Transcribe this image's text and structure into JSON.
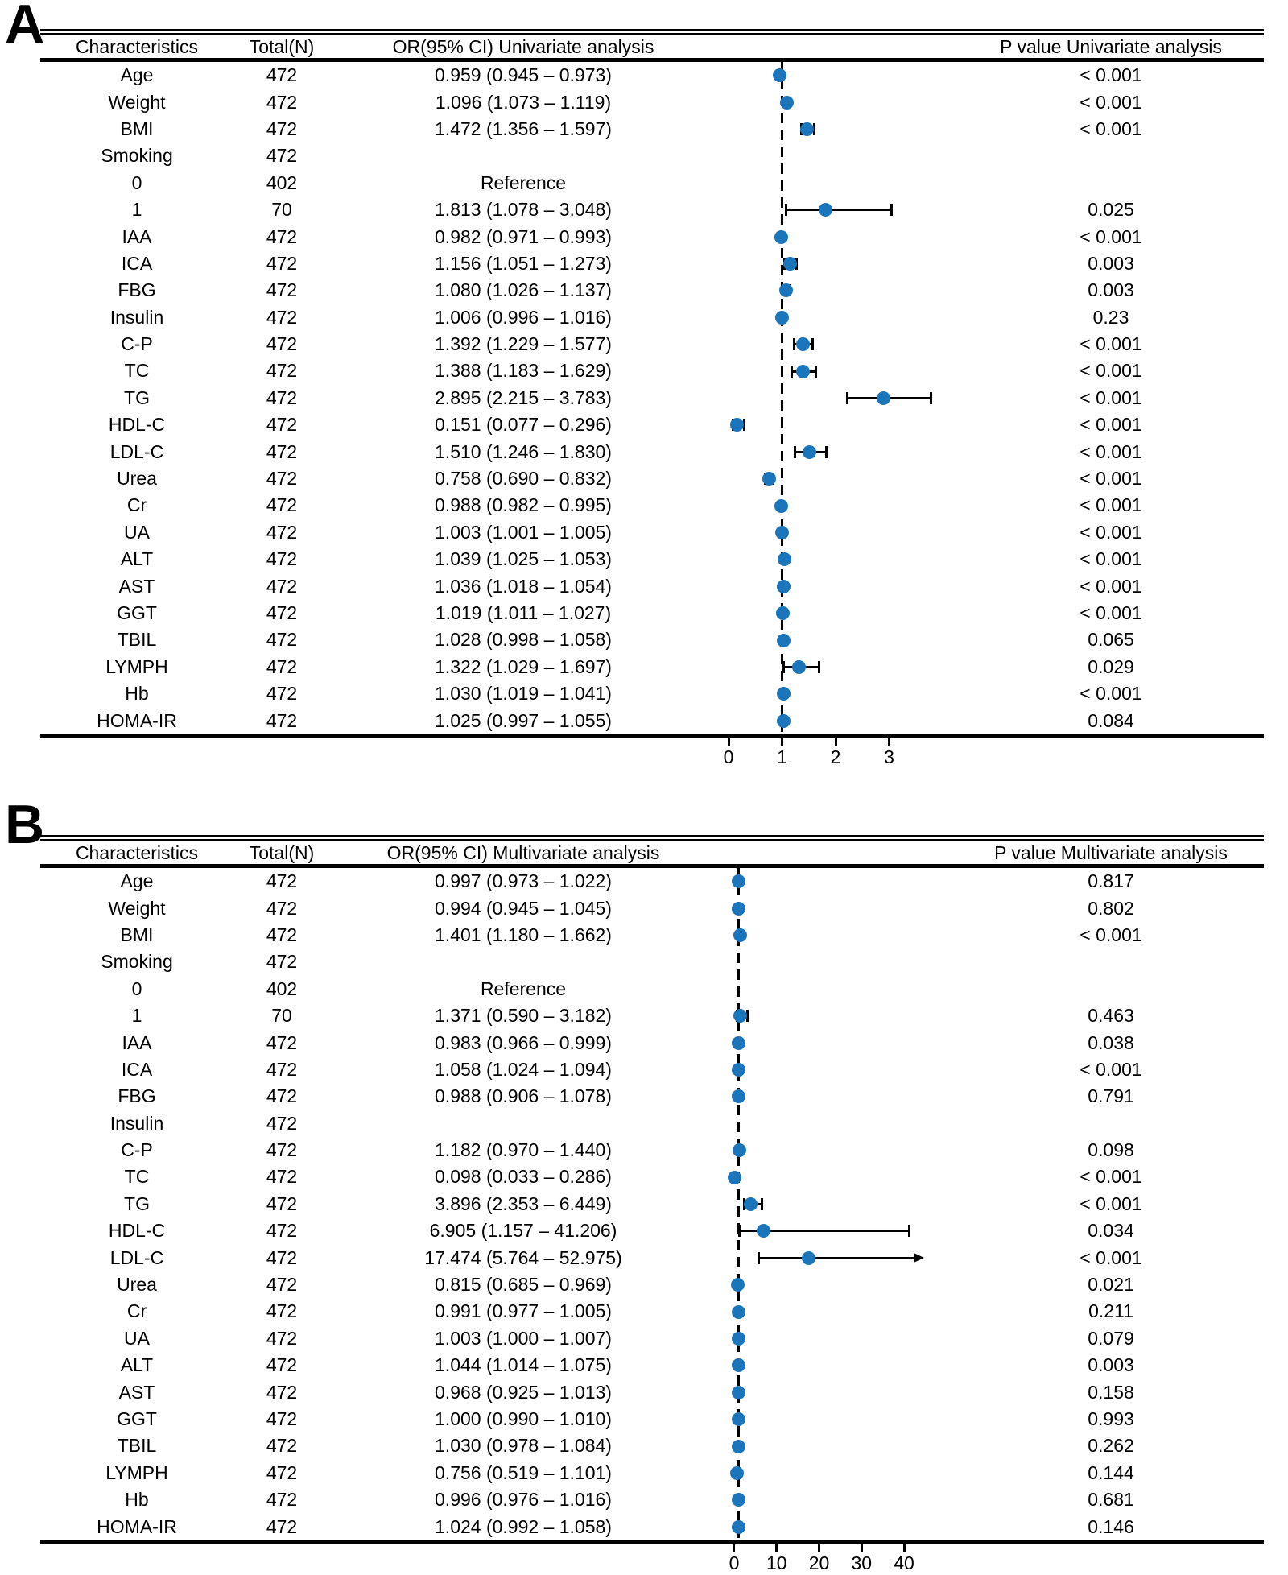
{
  "figure": {
    "background_color": "#ffffff",
    "marker_color": "#1b75bb",
    "line_color": "#000000"
  },
  "chart_data": [
    {
      "type": "forest",
      "panel_label": "A",
      "columns": [
        "Characteristics",
        "Total(N)",
        "OR(95% CI) Univariate analysis",
        "P value Univariate analysis"
      ],
      "axis": {
        "ticks": [
          0,
          1,
          2,
          3
        ],
        "tick_labels": [
          "0",
          "1",
          "2",
          "3"
        ],
        "xlim": [
          -0.226,
          4.286
        ],
        "dashed_line_at": 1
      },
      "rows": [
        {
          "characteristic": "Age",
          "total": "472",
          "or_ci": "0.959 (0.945 – 0.973)",
          "p": "< 0.001",
          "or": 0.959,
          "low": 0.945,
          "high": 0.973
        },
        {
          "characteristic": "Weight",
          "total": "472",
          "or_ci": "1.096 (1.073 – 1.119)",
          "p": "< 0.001",
          "or": 1.096,
          "low": 1.073,
          "high": 1.119
        },
        {
          "characteristic": "BMI",
          "total": "472",
          "or_ci": "1.472 (1.356 – 1.597)",
          "p": "< 0.001",
          "or": 1.472,
          "low": 1.356,
          "high": 1.597
        },
        {
          "characteristic": "Smoking",
          "total": "472",
          "or_ci": "",
          "p": ""
        },
        {
          "characteristic": "0",
          "total": "402",
          "or_ci": "Reference",
          "p": ""
        },
        {
          "characteristic": "1",
          "total": "70",
          "or_ci": "1.813 (1.078 – 3.048)",
          "p": "0.025",
          "or": 1.813,
          "low": 1.078,
          "high": 3.048
        },
        {
          "characteristic": "IAA",
          "total": "472",
          "or_ci": "0.982 (0.971 – 0.993)",
          "p": "< 0.001",
          "or": 0.982,
          "low": 0.971,
          "high": 0.993
        },
        {
          "characteristic": "ICA",
          "total": "472",
          "or_ci": "1.156 (1.051 – 1.273)",
          "p": "0.003",
          "or": 1.156,
          "low": 1.051,
          "high": 1.273
        },
        {
          "characteristic": "FBG",
          "total": "472",
          "or_ci": "1.080 (1.026 – 1.137)",
          "p": "0.003",
          "or": 1.08,
          "low": 1.026,
          "high": 1.137
        },
        {
          "characteristic": "Insulin",
          "total": "472",
          "or_ci": "1.006 (0.996 – 1.016)",
          "p": "0.23",
          "or": 1.006,
          "low": 0.996,
          "high": 1.016
        },
        {
          "characteristic": "C-P",
          "total": "472",
          "or_ci": "1.392 (1.229 – 1.577)",
          "p": "< 0.001",
          "or": 1.392,
          "low": 1.229,
          "high": 1.577
        },
        {
          "characteristic": "TC",
          "total": "472",
          "or_ci": "1.388 (1.183 – 1.629)",
          "p": "< 0.001",
          "or": 1.388,
          "low": 1.183,
          "high": 1.629
        },
        {
          "characteristic": "TG",
          "total": "472",
          "or_ci": "2.895 (2.215 – 3.783)",
          "p": "< 0.001",
          "or": 2.895,
          "low": 2.215,
          "high": 3.783
        },
        {
          "characteristic": "HDL-C",
          "total": "472",
          "or_ci": "0.151 (0.077 – 0.296)",
          "p": "< 0.001",
          "or": 0.151,
          "low": 0.077,
          "high": 0.296
        },
        {
          "characteristic": "LDL-C",
          "total": "472",
          "or_ci": "1.510 (1.246 – 1.830)",
          "p": "< 0.001",
          "or": 1.51,
          "low": 1.246,
          "high": 1.83
        },
        {
          "characteristic": "Urea",
          "total": "472",
          "or_ci": "0.758 (0.690 – 0.832)",
          "p": "< 0.001",
          "or": 0.758,
          "low": 0.69,
          "high": 0.832
        },
        {
          "characteristic": "Cr",
          "total": "472",
          "or_ci": "0.988 (0.982 – 0.995)",
          "p": "< 0.001",
          "or": 0.988,
          "low": 0.982,
          "high": 0.995
        },
        {
          "characteristic": "UA",
          "total": "472",
          "or_ci": "1.003 (1.001 – 1.005)",
          "p": "< 0.001",
          "or": 1.003,
          "low": 1.001,
          "high": 1.005
        },
        {
          "characteristic": "ALT",
          "total": "472",
          "or_ci": "1.039 (1.025 – 1.053)",
          "p": "< 0.001",
          "or": 1.039,
          "low": 1.025,
          "high": 1.053
        },
        {
          "characteristic": "AST",
          "total": "472",
          "or_ci": "1.036 (1.018 – 1.054)",
          "p": "< 0.001",
          "or": 1.036,
          "low": 1.018,
          "high": 1.054
        },
        {
          "characteristic": "GGT",
          "total": "472",
          "or_ci": "1.019 (1.011 – 1.027)",
          "p": "< 0.001",
          "or": 1.019,
          "low": 1.011,
          "high": 1.027
        },
        {
          "characteristic": "TBIL",
          "total": "472",
          "or_ci": "1.028 (0.998 – 1.058)",
          "p": "0.065",
          "or": 1.028,
          "low": 0.998,
          "high": 1.058
        },
        {
          "characteristic": "LYMPH",
          "total": "472",
          "or_ci": "1.322 (1.029 – 1.697)",
          "p": "0.029",
          "or": 1.322,
          "low": 1.029,
          "high": 1.697
        },
        {
          "characteristic": "Hb",
          "total": "472",
          "or_ci": "1.030 (1.019 – 1.041)",
          "p": "< 0.001",
          "or": 1.03,
          "low": 1.019,
          "high": 1.041
        },
        {
          "characteristic": "HOMA-IR",
          "total": "472",
          "or_ci": "1.025 (0.997 – 1.055)",
          "p": "0.084",
          "or": 1.025,
          "low": 0.997,
          "high": 1.055
        }
      ]
    },
    {
      "type": "forest",
      "panel_label": "B",
      "columns": [
        "Characteristics",
        "Total(N)",
        "OR(95% CI) Multivariate analysis",
        "P value Multivariate analysis"
      ],
      "axis": {
        "ticks": [
          0,
          10,
          20,
          30,
          40
        ],
        "tick_labels": [
          "0",
          "10",
          "20",
          "30",
          "40"
        ],
        "xlim": [
          -4.17,
          52.7
        ],
        "dashed_line_at": 1,
        "clip_max": 43.2
      },
      "rows": [
        {
          "characteristic": "Age",
          "total": "472",
          "or_ci": "0.997 (0.973 – 1.022)",
          "p": "0.817",
          "or": 0.997,
          "low": 0.973,
          "high": 1.022
        },
        {
          "characteristic": "Weight",
          "total": "472",
          "or_ci": "0.994 (0.945 – 1.045)",
          "p": "0.802",
          "or": 0.994,
          "low": 0.945,
          "high": 1.045
        },
        {
          "characteristic": "BMI",
          "total": "472",
          "or_ci": "1.401 (1.180 – 1.662)",
          "p": "< 0.001",
          "or": 1.401,
          "low": 1.18,
          "high": 1.662
        },
        {
          "characteristic": "Smoking",
          "total": "472",
          "or_ci": "",
          "p": ""
        },
        {
          "characteristic": "0",
          "total": "402",
          "or_ci": "Reference",
          "p": ""
        },
        {
          "characteristic": "1",
          "total": "70",
          "or_ci": "1.371 (0.590 – 3.182)",
          "p": "0.463",
          "or": 1.371,
          "low": 0.59,
          "high": 3.182
        },
        {
          "characteristic": "IAA",
          "total": "472",
          "or_ci": "0.983 (0.966 – 0.999)",
          "p": "0.038",
          "or": 0.983,
          "low": 0.966,
          "high": 0.999
        },
        {
          "characteristic": "ICA",
          "total": "472",
          "or_ci": "1.058 (1.024 – 1.094)",
          "p": "< 0.001",
          "or": 1.058,
          "low": 1.024,
          "high": 1.094
        },
        {
          "characteristic": "FBG",
          "total": "472",
          "or_ci": "0.988 (0.906 – 1.078)",
          "p": "0.791",
          "or": 0.988,
          "low": 0.906,
          "high": 1.078
        },
        {
          "characteristic": "Insulin",
          "total": "472",
          "or_ci": "",
          "p": ""
        },
        {
          "characteristic": "C-P",
          "total": "472",
          "or_ci": "1.182 (0.970 – 1.440)",
          "p": "0.098",
          "or": 1.182,
          "low": 0.97,
          "high": 1.44
        },
        {
          "characteristic": "TC",
          "total": "472",
          "or_ci": "0.098 (0.033 – 0.286)",
          "p": "< 0.001",
          "or": 0.098,
          "low": 0.033,
          "high": 0.286
        },
        {
          "characteristic": "TG",
          "total": "472",
          "or_ci": "3.896 (2.353 – 6.449)",
          "p": "< 0.001",
          "or": 3.896,
          "low": 2.353,
          "high": 6.449
        },
        {
          "characteristic": "HDL-C",
          "total": "472",
          "or_ci": "6.905 (1.157 – 41.206)",
          "p": "0.034",
          "or": 6.905,
          "low": 1.157,
          "high": 41.206
        },
        {
          "characteristic": "LDL-C",
          "total": "472",
          "or_ci": "17.474 (5.764 – 52.975)",
          "p": "< 0.001",
          "or": 17.474,
          "low": 5.764,
          "high": 52.975
        },
        {
          "characteristic": "Urea",
          "total": "472",
          "or_ci": "0.815 (0.685 – 0.969)",
          "p": "0.021",
          "or": 0.815,
          "low": 0.685,
          "high": 0.969
        },
        {
          "characteristic": "Cr",
          "total": "472",
          "or_ci": "0.991 (0.977 – 1.005)",
          "p": "0.211",
          "or": 0.991,
          "low": 0.977,
          "high": 1.005
        },
        {
          "characteristic": "UA",
          "total": "472",
          "or_ci": "1.003 (1.000 – 1.007)",
          "p": "0.079",
          "or": 1.003,
          "low": 1.0,
          "high": 1.007
        },
        {
          "characteristic": "ALT",
          "total": "472",
          "or_ci": "1.044 (1.014 – 1.075)",
          "p": "0.003",
          "or": 1.044,
          "low": 1.014,
          "high": 1.075
        },
        {
          "characteristic": "AST",
          "total": "472",
          "or_ci": "0.968 (0.925 – 1.013)",
          "p": "0.158",
          "or": 0.968,
          "low": 0.925,
          "high": 1.013
        },
        {
          "characteristic": "GGT",
          "total": "472",
          "or_ci": "1.000 (0.990 – 1.010)",
          "p": "0.993",
          "or": 1.0,
          "low": 0.99,
          "high": 1.01
        },
        {
          "characteristic": "TBIL",
          "total": "472",
          "or_ci": "1.030 (0.978 – 1.084)",
          "p": "0.262",
          "or": 1.03,
          "low": 0.978,
          "high": 1.084
        },
        {
          "characteristic": "LYMPH",
          "total": "472",
          "or_ci": "0.756 (0.519 – 1.101)",
          "p": "0.144",
          "or": 0.756,
          "low": 0.519,
          "high": 1.101
        },
        {
          "characteristic": "Hb",
          "total": "472",
          "or_ci": "0.996 (0.976 – 1.016)",
          "p": "0.681",
          "or": 0.996,
          "low": 0.976,
          "high": 1.016
        },
        {
          "characteristic": "HOMA-IR",
          "total": "472",
          "or_ci": "1.024 (0.992 – 1.058)",
          "p": "0.146",
          "or": 1.024,
          "low": 0.992,
          "high": 1.058
        }
      ]
    }
  ]
}
